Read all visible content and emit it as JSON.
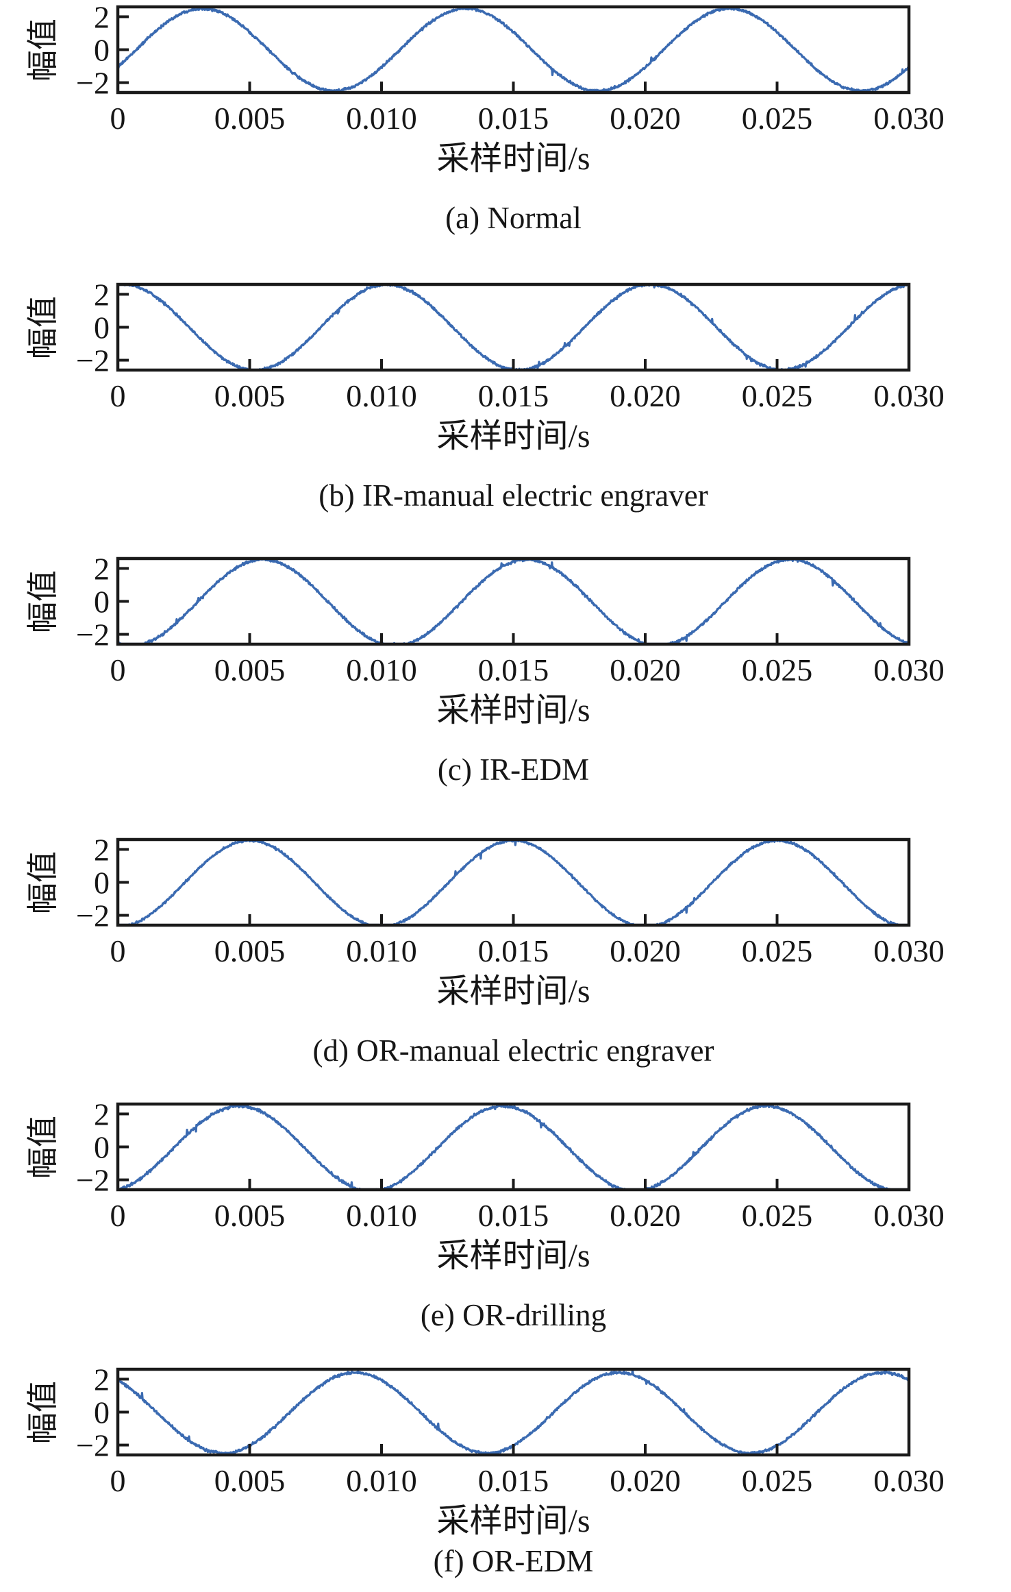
{
  "figure": {
    "ylabel": "幅值",
    "xlabel": "采样时间/s",
    "x_ticks": [
      0,
      0.005,
      0.01,
      0.015,
      0.02,
      0.025,
      0.03
    ],
    "x_tick_labels": [
      "0",
      "0.005",
      "0.010",
      "0.015",
      "0.020",
      "0.025",
      "0.030"
    ],
    "y_ticks": [
      2,
      0,
      -2
    ],
    "y_tick_labels": [
      "2",
      "0",
      "−2"
    ],
    "line_color": "#3a6ab1",
    "frame_color": "#1a1a1a"
  },
  "chart_data": [
    {
      "id": "a",
      "type": "line",
      "caption": "(a) Normal",
      "xlabel": "采样时间/s",
      "ylabel": "幅值",
      "xlim": [
        0,
        0.03
      ],
      "ylim": [
        -2.6,
        2.6
      ],
      "x_ticks": [
        0,
        0.005,
        0.01,
        0.015,
        0.02,
        0.025,
        0.03
      ],
      "y_ticks": [
        2,
        0,
        -2
      ],
      "grid": false,
      "legend": "none",
      "series": {
        "shape": "noisy_sine",
        "amplitude": 2.5,
        "dc_offset": 0.0,
        "period_s": 0.01,
        "frequency_hz": 100,
        "first_peak_s": 0.0032,
        "peak_times_s": [
          0.0032,
          0.0132,
          0.0232
        ],
        "trough_times_s": [
          0.0082,
          0.0182,
          0.0282
        ],
        "start_value": -1.05,
        "noise_sd": 0.045
      }
    },
    {
      "id": "b",
      "type": "line",
      "caption": "(b) IR-manual electric engraver",
      "xlabel": "采样时间/s",
      "ylabel": "幅值",
      "xlim": [
        0,
        0.03
      ],
      "ylim": [
        -2.6,
        2.6
      ],
      "x_ticks": [
        0,
        0.005,
        0.01,
        0.015,
        0.02,
        0.025,
        0.03
      ],
      "y_ticks": [
        2,
        0,
        -2
      ],
      "grid": false,
      "legend": "none",
      "series": {
        "shape": "noisy_sine",
        "amplitude": 2.6,
        "dc_offset": 0.0,
        "period_s": 0.01,
        "frequency_hz": 100,
        "first_peak_s": 0.0002,
        "peak_times_s": [
          0.0002,
          0.0102,
          0.0202
        ],
        "trough_times_s": [
          0.0052,
          0.0152,
          0.0252
        ],
        "start_value": 2.4,
        "noise_sd": 0.045
      }
    },
    {
      "id": "c",
      "type": "line",
      "caption": "(c) IR-EDM",
      "xlabel": "采样时间/s",
      "ylabel": "幅值",
      "xlim": [
        0,
        0.03
      ],
      "ylim": [
        -2.6,
        2.6
      ],
      "x_ticks": [
        0,
        0.005,
        0.01,
        0.015,
        0.02,
        0.025,
        0.03
      ],
      "y_ticks": [
        2,
        0,
        -2
      ],
      "grid": false,
      "legend": "none",
      "series": {
        "shape": "noisy_sine",
        "amplitude": 2.62,
        "dc_offset": -0.08,
        "period_s": 0.01,
        "frequency_hz": 100,
        "first_peak_s": 0.0055,
        "peak_times_s": [
          0.0055,
          0.0155,
          0.0255
        ],
        "trough_times_s": [
          0.0005,
          0.0105,
          0.0205
        ],
        "start_value": -2.45,
        "noise_sd": 0.045
      }
    },
    {
      "id": "d",
      "type": "line",
      "caption": "(d) OR-manual electric engraver",
      "xlabel": "采样时间/s",
      "ylabel": "幅值",
      "xlim": [
        0,
        0.03
      ],
      "ylim": [
        -2.6,
        2.6
      ],
      "x_ticks": [
        0,
        0.005,
        0.01,
        0.015,
        0.02,
        0.025,
        0.03
      ],
      "y_ticks": [
        2,
        0,
        -2
      ],
      "grid": false,
      "legend": "none",
      "series": {
        "shape": "noisy_sine",
        "amplitude": 2.62,
        "dc_offset": -0.08,
        "period_s": 0.01,
        "frequency_hz": 100,
        "first_peak_s": 0.005,
        "peak_times_s": [
          0.005,
          0.015,
          0.025
        ],
        "trough_times_s": [
          0.0,
          0.01,
          0.02,
          0.03
        ],
        "start_value": -2.55,
        "noise_sd": 0.04
      }
    },
    {
      "id": "e",
      "type": "line",
      "caption": "(e) OR-drilling",
      "xlabel": "采样时间/s",
      "ylabel": "幅值",
      "xlim": [
        0,
        0.03
      ],
      "ylim": [
        -2.6,
        2.6
      ],
      "x_ticks": [
        0,
        0.005,
        0.01,
        0.015,
        0.02,
        0.025,
        0.03
      ],
      "y_ticks": [
        2,
        0,
        -2
      ],
      "grid": false,
      "legend": "none",
      "series": {
        "shape": "noisy_sine",
        "amplitude": 2.58,
        "dc_offset": -0.1,
        "period_s": 0.01,
        "frequency_hz": 100,
        "first_peak_s": 0.0046,
        "peak_times_s": [
          0.0046,
          0.0146,
          0.0246
        ],
        "trough_times_s": [
          0.0096,
          0.0196,
          0.0296
        ],
        "start_value": -2.45,
        "noise_sd": 0.05
      }
    },
    {
      "id": "f",
      "type": "line",
      "caption": "(f) OR-EDM",
      "xlabel": "采样时间/s",
      "ylabel": "幅值",
      "xlim": [
        0,
        0.03
      ],
      "ylim": [
        -2.6,
        2.6
      ],
      "x_ticks": [
        0,
        0.005,
        0.01,
        0.015,
        0.02,
        0.025,
        0.03
      ],
      "y_ticks": [
        2,
        0,
        -2
      ],
      "grid": false,
      "legend": "none",
      "series": {
        "shape": "noisy_sine",
        "amplitude": 2.45,
        "dc_offset": -0.05,
        "period_s": 0.01,
        "frequency_hz": 100,
        "first_peak_s": 0.009,
        "peak_times_s": [
          0.009,
          0.019,
          0.029
        ],
        "trough_times_s": [
          0.004,
          0.014,
          0.024
        ],
        "start_value": 1.9,
        "noise_sd": 0.045
      }
    }
  ]
}
